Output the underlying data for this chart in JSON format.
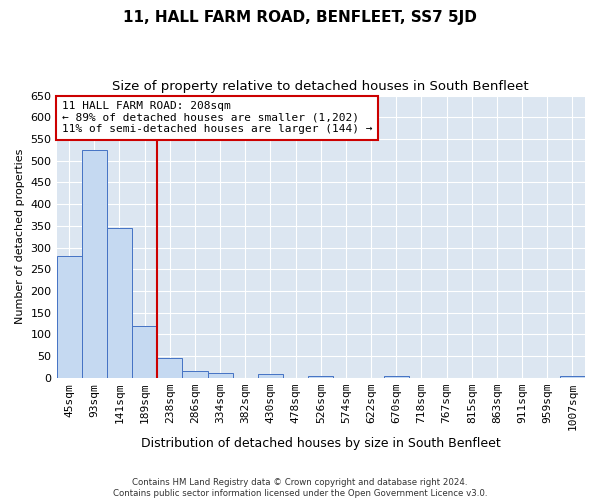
{
  "title": "11, HALL FARM ROAD, BENFLEET, SS7 5JD",
  "subtitle": "Size of property relative to detached houses in South Benfleet",
  "xlabel": "Distribution of detached houses by size in South Benfleet",
  "ylabel": "Number of detached properties",
  "footer_line1": "Contains HM Land Registry data © Crown copyright and database right 2024.",
  "footer_line2": "Contains public sector information licensed under the Open Government Licence v3.0.",
  "categories": [
    "45sqm",
    "93sqm",
    "141sqm",
    "189sqm",
    "238sqm",
    "286sqm",
    "334sqm",
    "382sqm",
    "430sqm",
    "478sqm",
    "526sqm",
    "574sqm",
    "622sqm",
    "670sqm",
    "718sqm",
    "767sqm",
    "815sqm",
    "863sqm",
    "911sqm",
    "959sqm",
    "1007sqm"
  ],
  "values": [
    281,
    524,
    346,
    120,
    47,
    16,
    11,
    0,
    9,
    0,
    5,
    0,
    0,
    5,
    0,
    0,
    0,
    0,
    0,
    0,
    5
  ],
  "bar_color": "#c5d9f1",
  "bar_edge_color": "#4472c4",
  "grid_color": "#d9e1f2",
  "background_color": "#dce6f1",
  "red_line_x": 3.5,
  "red_line_color": "#cc0000",
  "annotation_line1": "11 HALL FARM ROAD: 208sqm",
  "annotation_line2": "← 89% of detached houses are smaller (1,202)",
  "annotation_line3": "11% of semi-detached houses are larger (144) →",
  "annotation_box_color": "#cc0000",
  "ylim": [
    0,
    650
  ],
  "yticks": [
    0,
    50,
    100,
    150,
    200,
    250,
    300,
    350,
    400,
    450,
    500,
    550,
    600,
    650
  ],
  "title_fontsize": 11,
  "subtitle_fontsize": 9.5,
  "annotation_fontsize": 8,
  "axis_fontsize": 8,
  "ylabel_fontsize": 8,
  "xlabel_fontsize": 9
}
